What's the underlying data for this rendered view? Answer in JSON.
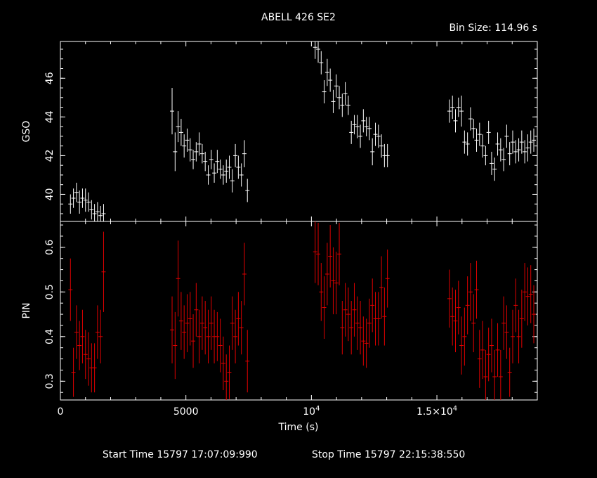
{
  "chart_data": {
    "type": "scatter",
    "title": "ABELL 426 SE2",
    "bin_size_text": "Bin Size: 114.96 s",
    "xlabel": "Time (s)",
    "xlim": [
      0,
      19000
    ],
    "x_ticks": [
      {
        "value": 0,
        "label": "0"
      },
      {
        "value": 5000,
        "label": "5000"
      },
      {
        "value": 10000,
        "label": "10",
        "sup": "4"
      },
      {
        "value": 15000,
        "label": "1.5×10",
        "sup": "4"
      }
    ],
    "footer": {
      "start": "Start Time 15797 17:07:09:990",
      "stop": "Stop Time 15797 22:15:38:550"
    },
    "panels": [
      {
        "name": "gso",
        "ylabel": "GSO",
        "ylim": [
          38.6,
          47.9
        ],
        "yticks": [
          40,
          42,
          44,
          46
        ],
        "color": "#ffffff",
        "points": [
          [
            400,
            39.5,
            0.5
          ],
          [
            520,
            39.8,
            0.5
          ],
          [
            640,
            40.1,
            0.5
          ],
          [
            760,
            39.6,
            0.6
          ],
          [
            880,
            39.8,
            0.5
          ],
          [
            1000,
            39.7,
            0.6
          ],
          [
            1120,
            39.6,
            0.5
          ],
          [
            1240,
            39.2,
            0.5
          ],
          [
            1360,
            39.0,
            0.5
          ],
          [
            1480,
            39.1,
            0.5
          ],
          [
            1600,
            38.9,
            0.5
          ],
          [
            1720,
            39.0,
            0.5
          ],
          [
            4450,
            44.3,
            1.2
          ],
          [
            4570,
            42.2,
            1.0
          ],
          [
            4690,
            43.5,
            0.8
          ],
          [
            4810,
            43.2,
            0.7
          ],
          [
            4930,
            42.5,
            0.6
          ],
          [
            5050,
            42.8,
            0.6
          ],
          [
            5170,
            42.3,
            0.6
          ],
          [
            5290,
            41.8,
            0.5
          ],
          [
            5410,
            42.2,
            0.5
          ],
          [
            5530,
            42.6,
            0.6
          ],
          [
            5650,
            42.1,
            0.5
          ],
          [
            5770,
            41.7,
            0.5
          ],
          [
            5890,
            41.0,
            0.5
          ],
          [
            6010,
            41.8,
            0.5
          ],
          [
            6130,
            41.1,
            0.5
          ],
          [
            6250,
            41.7,
            0.6
          ],
          [
            6370,
            41.3,
            0.5
          ],
          [
            6490,
            41.0,
            0.5
          ],
          [
            6610,
            41.2,
            0.6
          ],
          [
            6730,
            41.4,
            0.6
          ],
          [
            6850,
            40.7,
            0.6
          ],
          [
            6970,
            42.0,
            0.6
          ],
          [
            7090,
            41.4,
            0.6
          ],
          [
            7210,
            41.0,
            0.6
          ],
          [
            7330,
            42.1,
            0.7
          ],
          [
            7450,
            40.2,
            0.6
          ],
          [
            10150,
            47.6,
            0.6
          ],
          [
            10270,
            47.5,
            0.7
          ],
          [
            10390,
            46.8,
            0.6
          ],
          [
            10510,
            45.3,
            0.6
          ],
          [
            10630,
            46.3,
            0.7
          ],
          [
            10750,
            45.9,
            0.6
          ],
          [
            10870,
            44.8,
            0.6
          ],
          [
            10990,
            45.6,
            0.6
          ],
          [
            11110,
            45.0,
            0.6
          ],
          [
            11230,
            44.6,
            0.6
          ],
          [
            11350,
            45.2,
            0.6
          ],
          [
            11470,
            44.6,
            0.5
          ],
          [
            11590,
            43.2,
            0.6
          ],
          [
            11710,
            43.6,
            0.5
          ],
          [
            11830,
            43.5,
            0.6
          ],
          [
            11950,
            43.0,
            0.6
          ],
          [
            12070,
            43.8,
            0.6
          ],
          [
            12190,
            43.5,
            0.5
          ],
          [
            12310,
            43.4,
            0.6
          ],
          [
            12430,
            42.2,
            0.7
          ],
          [
            12550,
            43.1,
            0.6
          ],
          [
            12670,
            43.0,
            0.6
          ],
          [
            12790,
            42.5,
            0.6
          ],
          [
            12910,
            42.0,
            0.6
          ],
          [
            13030,
            42.0,
            0.6
          ],
          [
            15500,
            44.3,
            0.6
          ],
          [
            15620,
            44.5,
            0.6
          ],
          [
            15740,
            43.8,
            0.6
          ],
          [
            15860,
            44.5,
            0.5
          ],
          [
            15980,
            44.3,
            0.8
          ],
          [
            16100,
            42.7,
            0.6
          ],
          [
            16220,
            42.6,
            0.6
          ],
          [
            16340,
            43.9,
            0.6
          ],
          [
            16460,
            43.4,
            0.5
          ],
          [
            16580,
            42.8,
            0.6
          ],
          [
            16700,
            43.1,
            0.6
          ],
          [
            16820,
            42.5,
            0.6
          ],
          [
            16940,
            42.0,
            0.5
          ],
          [
            17060,
            43.2,
            0.6
          ],
          [
            17180,
            41.6,
            0.6
          ],
          [
            17300,
            41.3,
            0.6
          ],
          [
            17420,
            42.6,
            0.6
          ],
          [
            17540,
            42.3,
            0.6
          ],
          [
            17660,
            41.8,
            0.6
          ],
          [
            17780,
            43.0,
            0.6
          ],
          [
            17900,
            42.1,
            0.6
          ],
          [
            18020,
            42.7,
            0.6
          ],
          [
            18140,
            42.2,
            0.6
          ],
          [
            18260,
            42.3,
            0.6
          ],
          [
            18380,
            42.7,
            0.6
          ],
          [
            18500,
            42.2,
            0.6
          ],
          [
            18620,
            42.4,
            0.7
          ],
          [
            18740,
            42.7,
            0.6
          ],
          [
            18860,
            42.8,
            0.6
          ]
        ]
      },
      {
        "name": "pin",
        "ylabel": "PIN",
        "ylim": [
          0.258,
          0.658
        ],
        "yticks": [
          0.3,
          0.4,
          0.5,
          0.6
        ],
        "color": "#e00000",
        "points": [
          [
            400,
            0.505,
            0.07
          ],
          [
            520,
            0.32,
            0.055
          ],
          [
            640,
            0.41,
            0.06
          ],
          [
            760,
            0.38,
            0.055
          ],
          [
            880,
            0.4,
            0.06
          ],
          [
            1000,
            0.36,
            0.055
          ],
          [
            1120,
            0.35,
            0.06
          ],
          [
            1240,
            0.33,
            0.055
          ],
          [
            1360,
            0.33,
            0.055
          ],
          [
            1480,
            0.41,
            0.06
          ],
          [
            1600,
            0.4,
            0.06
          ],
          [
            1720,
            0.545,
            0.09
          ],
          [
            4450,
            0.415,
            0.075
          ],
          [
            4570,
            0.38,
            0.075
          ],
          [
            4690,
            0.53,
            0.085
          ],
          [
            4810,
            0.435,
            0.065
          ],
          [
            4930,
            0.41,
            0.06
          ],
          [
            5050,
            0.43,
            0.065
          ],
          [
            5170,
            0.44,
            0.06
          ],
          [
            5290,
            0.39,
            0.06
          ],
          [
            5410,
            0.46,
            0.06
          ],
          [
            5530,
            0.4,
            0.06
          ],
          [
            5650,
            0.43,
            0.06
          ],
          [
            5770,
            0.42,
            0.06
          ],
          [
            5890,
            0.4,
            0.06
          ],
          [
            6010,
            0.43,
            0.06
          ],
          [
            6130,
            0.4,
            0.06
          ],
          [
            6250,
            0.4,
            0.055
          ],
          [
            6370,
            0.38,
            0.06
          ],
          [
            6490,
            0.34,
            0.06
          ],
          [
            6610,
            0.3,
            0.06
          ],
          [
            6730,
            0.32,
            0.06
          ],
          [
            6850,
            0.43,
            0.06
          ],
          [
            6970,
            0.4,
            0.06
          ],
          [
            7090,
            0.44,
            0.06
          ],
          [
            7210,
            0.42,
            0.06
          ],
          [
            7330,
            0.54,
            0.07
          ],
          [
            7450,
            0.345,
            0.07
          ],
          [
            10150,
            0.59,
            0.07
          ],
          [
            10270,
            0.585,
            0.07
          ],
          [
            10390,
            0.5,
            0.065
          ],
          [
            10510,
            0.465,
            0.07
          ],
          [
            10630,
            0.54,
            0.07
          ],
          [
            10750,
            0.58,
            0.07
          ],
          [
            10870,
            0.525,
            0.075
          ],
          [
            10990,
            0.52,
            0.07
          ],
          [
            11110,
            0.585,
            0.07
          ],
          [
            11230,
            0.42,
            0.06
          ],
          [
            11350,
            0.46,
            0.06
          ],
          [
            11470,
            0.45,
            0.06
          ],
          [
            11590,
            0.42,
            0.06
          ],
          [
            11710,
            0.46,
            0.06
          ],
          [
            11830,
            0.43,
            0.06
          ],
          [
            11950,
            0.42,
            0.06
          ],
          [
            12070,
            0.39,
            0.055
          ],
          [
            12190,
            0.385,
            0.055
          ],
          [
            12310,
            0.43,
            0.055
          ],
          [
            12430,
            0.47,
            0.06
          ],
          [
            12550,
            0.44,
            0.06
          ],
          [
            12670,
            0.44,
            0.06
          ],
          [
            12790,
            0.51,
            0.07
          ],
          [
            12910,
            0.445,
            0.065
          ],
          [
            13030,
            0.53,
            0.065
          ],
          [
            15500,
            0.485,
            0.065
          ],
          [
            15620,
            0.445,
            0.065
          ],
          [
            15740,
            0.435,
            0.07
          ],
          [
            15860,
            0.465,
            0.06
          ],
          [
            15980,
            0.38,
            0.065
          ],
          [
            16100,
            0.4,
            0.065
          ],
          [
            16220,
            0.47,
            0.065
          ],
          [
            16340,
            0.5,
            0.065
          ],
          [
            16460,
            0.43,
            0.065
          ],
          [
            16580,
            0.505,
            0.065
          ],
          [
            16700,
            0.35,
            0.065
          ],
          [
            16820,
            0.37,
            0.065
          ],
          [
            16940,
            0.31,
            0.06
          ],
          [
            17060,
            0.36,
            0.06
          ],
          [
            17180,
            0.38,
            0.06
          ],
          [
            17300,
            0.31,
            0.06
          ],
          [
            17420,
            0.37,
            0.06
          ],
          [
            17540,
            0.31,
            0.06
          ],
          [
            17660,
            0.43,
            0.06
          ],
          [
            17780,
            0.41,
            0.06
          ],
          [
            17900,
            0.32,
            0.055
          ],
          [
            18020,
            0.4,
            0.06
          ],
          [
            18140,
            0.47,
            0.06
          ],
          [
            18260,
            0.4,
            0.06
          ],
          [
            18380,
            0.44,
            0.065
          ],
          [
            18500,
            0.5,
            0.065
          ],
          [
            18620,
            0.49,
            0.065
          ],
          [
            18740,
            0.495,
            0.065
          ],
          [
            18860,
            0.45,
            0.065
          ]
        ]
      }
    ]
  }
}
